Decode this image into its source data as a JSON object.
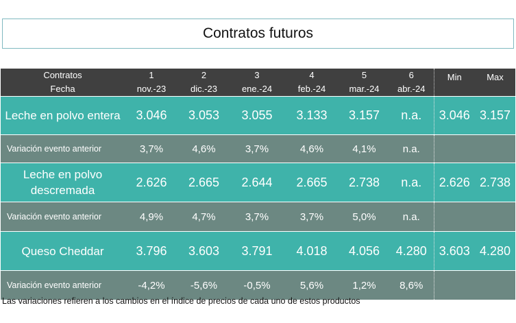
{
  "title": "Contratos futuros",
  "header": {
    "label_top": "Contratos",
    "label_bottom": "Fecha",
    "contracts": [
      {
        "num": "1",
        "date": "nov.-23"
      },
      {
        "num": "2",
        "date": "dic.-23"
      },
      {
        "num": "3",
        "date": "ene.-24"
      },
      {
        "num": "4",
        "date": "feb.-24"
      },
      {
        "num": "5",
        "date": "mar.-24"
      },
      {
        "num": "6",
        "date": "abr.-24"
      }
    ],
    "min": "Min",
    "max": "Max"
  },
  "rows": [
    {
      "label": "Leche en polvo entera",
      "values": [
        "3.046",
        "3.053",
        "3.055",
        "3.133",
        "3.157",
        "n.a."
      ],
      "min": "3.046",
      "max": "3.157"
    },
    {
      "label": "Variación evento anterior",
      "values": [
        "3,7%",
        "4,6%",
        "3,7%",
        "4,6%",
        "4,1%",
        "n.a."
      ],
      "min": "",
      "max": ""
    },
    {
      "label": "Leche en polvo descremada",
      "values": [
        "2.626",
        "2.665",
        "2.644",
        "2.665",
        "2.738",
        "n.a."
      ],
      "min": "2.626",
      "max": "2.738"
    },
    {
      "label": "Variación evento anterior",
      "values": [
        "4,9%",
        "4,7%",
        "3,7%",
        "3,7%",
        "5,0%",
        "n.a."
      ],
      "min": "",
      "max": ""
    },
    {
      "label": "Queso Cheddar",
      "values": [
        "3.796",
        "3.603",
        "3.791",
        "4.018",
        "4.056",
        "4.280"
      ],
      "min": "3.603",
      "max": "4.280"
    },
    {
      "label": "Variación evento anterior",
      "values": [
        "-4,2%",
        "-5,6%",
        "-0,5%",
        "5,6%",
        "1,2%",
        "8,6%"
      ],
      "min": "",
      "max": ""
    }
  ],
  "note": "Las variaciones refieren a los cambios en el índice de precios de cada uno de estos productos",
  "colors": {
    "header": "#404040",
    "product_row": "#3fb3aa",
    "variation_row": "#6c8882"
  }
}
